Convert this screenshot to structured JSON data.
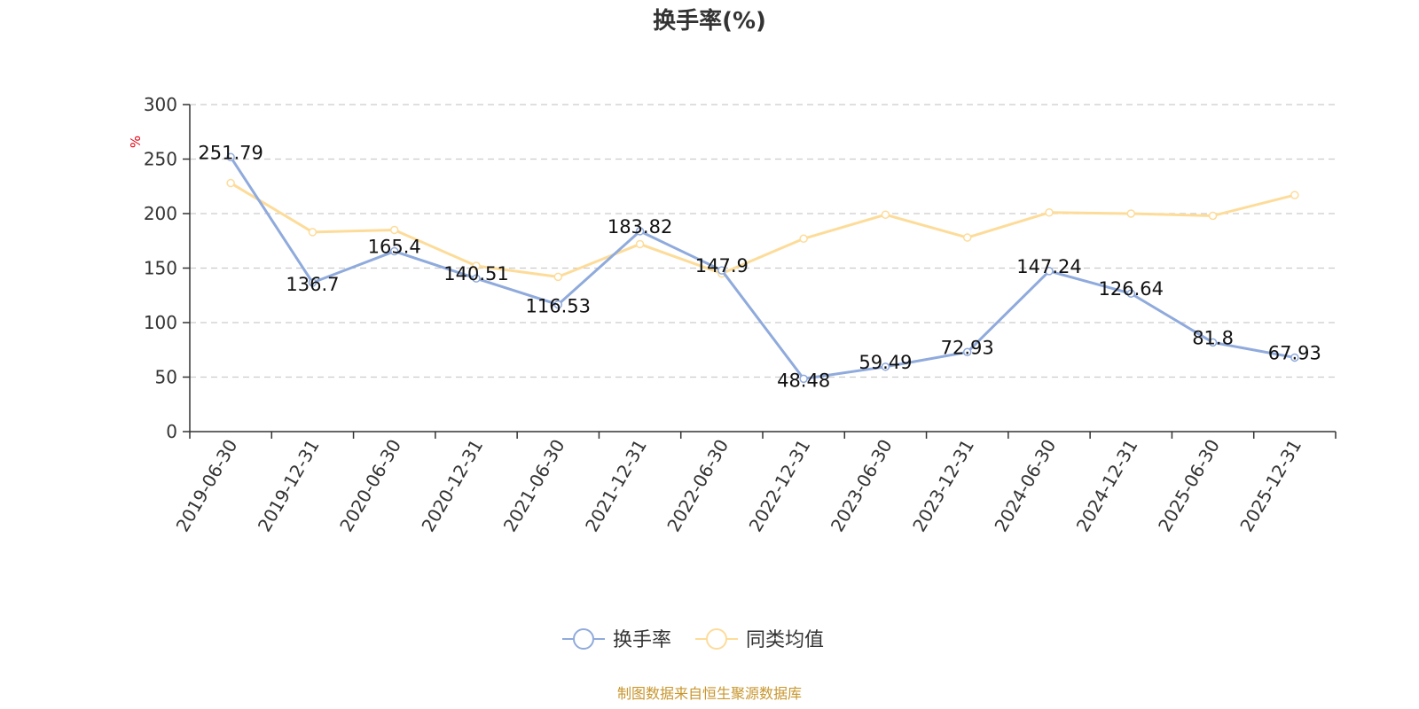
{
  "chart_data": {
    "type": "line",
    "title": "换手率(%)",
    "unit_label": "%",
    "categories": [
      "2019-06-30",
      "2019-12-31",
      "2020-06-30",
      "2020-12-31",
      "2021-06-30",
      "2021-12-31",
      "2022-06-30",
      "2022-12-31",
      "2023-06-30",
      "2023-12-31",
      "2024-06-30",
      "2024-12-31",
      "2025-06-30",
      "2025-12-31"
    ],
    "ylim": [
      0,
      300
    ],
    "yticks": [
      0,
      50,
      100,
      150,
      200,
      250,
      300
    ],
    "grid": true,
    "legend_position": "bottom-center",
    "series": [
      {
        "name": "换手率",
        "color": "#8faadc",
        "values": [
          251.79,
          136.7,
          165.4,
          140.51,
          116.53,
          183.82,
          147.9,
          48.48,
          59.49,
          72.93,
          147.24,
          126.64,
          81.8,
          67.93
        ],
        "labels": [
          "251.79",
          "136.7",
          "165.4",
          "140.51",
          "116.53",
          "183.82",
          "147.9",
          "48.48",
          "59.49",
          "72.93",
          "147.24",
          "126.64",
          "81.8",
          "67.93"
        ]
      },
      {
        "name": "同类均值",
        "color": "#fddc9a",
        "values": [
          228,
          183,
          185,
          152,
          142,
          172,
          145,
          177,
          199,
          178,
          201,
          200,
          198,
          217
        ]
      }
    ],
    "source": "制图数据来自恒生聚源数据库"
  }
}
